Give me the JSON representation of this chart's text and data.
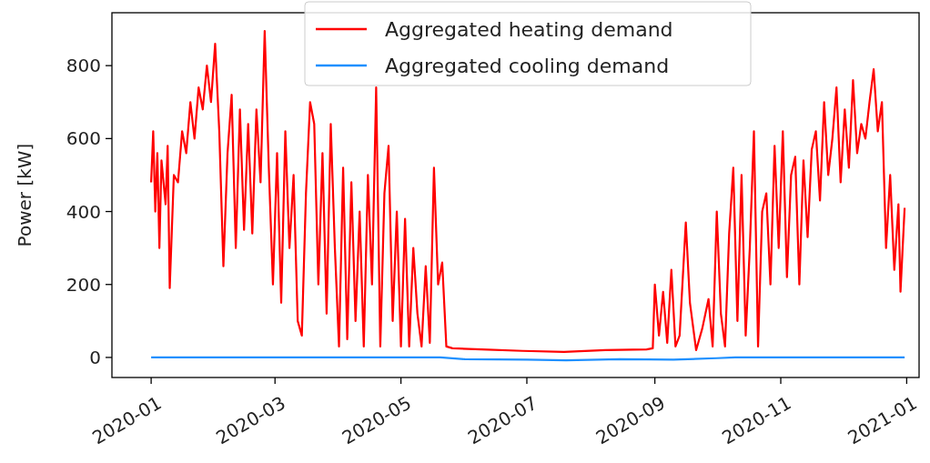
{
  "chart_data": {
    "type": "line",
    "ylabel": "Power [kW]",
    "xlim": [
      "2019-12-13",
      "2021-01-07"
    ],
    "ylim": [
      -55,
      945
    ],
    "xticks": [
      {
        "value": "2020-01-01",
        "label": "2020-01"
      },
      {
        "value": "2020-03-01",
        "label": "2020-03"
      },
      {
        "value": "2020-05-01",
        "label": "2020-05"
      },
      {
        "value": "2020-07-01",
        "label": "2020-07"
      },
      {
        "value": "2020-09-01",
        "label": "2020-09"
      },
      {
        "value": "2020-11-01",
        "label": "2020-11"
      },
      {
        "value": "2021-01-01",
        "label": "2021-01"
      }
    ],
    "yticks": [
      0,
      200,
      400,
      600,
      800
    ],
    "grid": false,
    "legend": "top",
    "line_style": "solid",
    "marker": "none",
    "series": [
      {
        "name": "Aggregated heating demand",
        "color": "#ff0000",
        "x": [
          "2020-01-01",
          "2020-01-02",
          "2020-01-03",
          "2020-01-04",
          "2020-01-05",
          "2020-01-06",
          "2020-01-08",
          "2020-01-09",
          "2020-01-10",
          "2020-01-12",
          "2020-01-14",
          "2020-01-16",
          "2020-01-18",
          "2020-01-20",
          "2020-01-22",
          "2020-01-24",
          "2020-01-26",
          "2020-01-28",
          "2020-01-30",
          "2020-02-01",
          "2020-02-03",
          "2020-02-05",
          "2020-02-07",
          "2020-02-09",
          "2020-02-11",
          "2020-02-13",
          "2020-02-15",
          "2020-02-17",
          "2020-02-19",
          "2020-02-21",
          "2020-02-23",
          "2020-02-25",
          "2020-02-27",
          "2020-02-29",
          "2020-03-02",
          "2020-03-04",
          "2020-03-06",
          "2020-03-08",
          "2020-03-10",
          "2020-03-12",
          "2020-03-14",
          "2020-03-16",
          "2020-03-18",
          "2020-03-20",
          "2020-03-22",
          "2020-03-24",
          "2020-03-26",
          "2020-03-28",
          "2020-03-30",
          "2020-04-01",
          "2020-04-03",
          "2020-04-05",
          "2020-04-07",
          "2020-04-09",
          "2020-04-11",
          "2020-04-13",
          "2020-04-15",
          "2020-04-17",
          "2020-04-19",
          "2020-04-21",
          "2020-04-23",
          "2020-04-25",
          "2020-04-27",
          "2020-04-29",
          "2020-05-01",
          "2020-05-03",
          "2020-05-05",
          "2020-05-07",
          "2020-05-09",
          "2020-05-11",
          "2020-05-13",
          "2020-05-15",
          "2020-05-17",
          "2020-05-19",
          "2020-05-21",
          "2020-05-23",
          "2020-05-26",
          "2020-06-09",
          "2020-06-29",
          "2020-07-19",
          "2020-08-08",
          "2020-08-28",
          "2020-08-31",
          "2020-09-01",
          "2020-09-03",
          "2020-09-05",
          "2020-09-07",
          "2020-09-09",
          "2020-09-11",
          "2020-09-13",
          "2020-09-16",
          "2020-09-18",
          "2020-09-21",
          "2020-09-24",
          "2020-09-27",
          "2020-09-29",
          "2020-10-01",
          "2020-10-03",
          "2020-10-05",
          "2020-10-07",
          "2020-10-09",
          "2020-10-11",
          "2020-10-13",
          "2020-10-15",
          "2020-10-17",
          "2020-10-19",
          "2020-10-21",
          "2020-10-23",
          "2020-10-25",
          "2020-10-27",
          "2020-10-29",
          "2020-10-31",
          "2020-11-02",
          "2020-11-04",
          "2020-11-06",
          "2020-11-08",
          "2020-11-10",
          "2020-11-12",
          "2020-11-14",
          "2020-11-16",
          "2020-11-18",
          "2020-11-20",
          "2020-11-22",
          "2020-11-24",
          "2020-11-26",
          "2020-11-28",
          "2020-11-30",
          "2020-12-02",
          "2020-12-04",
          "2020-12-06",
          "2020-12-08",
          "2020-12-10",
          "2020-12-12",
          "2020-12-14",
          "2020-12-16",
          "2020-12-18",
          "2020-12-20",
          "2020-12-22",
          "2020-12-24",
          "2020-12-26",
          "2020-12-28",
          "2020-12-29",
          "2020-12-31"
        ],
        "values": [
          480,
          620,
          400,
          560,
          300,
          540,
          420,
          580,
          190,
          500,
          480,
          620,
          560,
          700,
          600,
          740,
          680,
          800,
          700,
          860,
          620,
          250,
          560,
          720,
          300,
          680,
          350,
          640,
          340,
          680,
          480,
          895,
          520,
          200,
          560,
          150,
          620,
          300,
          500,
          100,
          60,
          450,
          700,
          640,
          200,
          560,
          120,
          640,
          300,
          30,
          520,
          50,
          480,
          100,
          400,
          30,
          500,
          200,
          740,
          30,
          450,
          580,
          100,
          400,
          30,
          380,
          30,
          300,
          120,
          30,
          250,
          40,
          520,
          200,
          260,
          30,
          25,
          22,
          18,
          15,
          20,
          22,
          25,
          200,
          60,
          180,
          40,
          240,
          30,
          60,
          370,
          150,
          20,
          80,
          160,
          30,
          400,
          120,
          30,
          340,
          520,
          100,
          500,
          60,
          300,
          620,
          30,
          400,
          450,
          200,
          580,
          300,
          620,
          220,
          500,
          550,
          200,
          540,
          330,
          570,
          620,
          430,
          700,
          500,
          600,
          740,
          480,
          680,
          520,
          760,
          560,
          640,
          600,
          700,
          790,
          620,
          700,
          300,
          500,
          240,
          420,
          180,
          410
        ]
      },
      {
        "name": "Aggregated cooling demand",
        "color": "#1e90ff",
        "x": [
          "2020-01-01",
          "2020-05-20",
          "2020-06-01",
          "2020-07-01",
          "2020-07-20",
          "2020-08-15",
          "2020-09-10",
          "2020-10-01",
          "2020-10-10",
          "2020-12-31"
        ],
        "values": [
          0,
          0,
          -5,
          -6,
          -8,
          -5,
          -6,
          -2,
          0,
          0
        ]
      }
    ]
  }
}
